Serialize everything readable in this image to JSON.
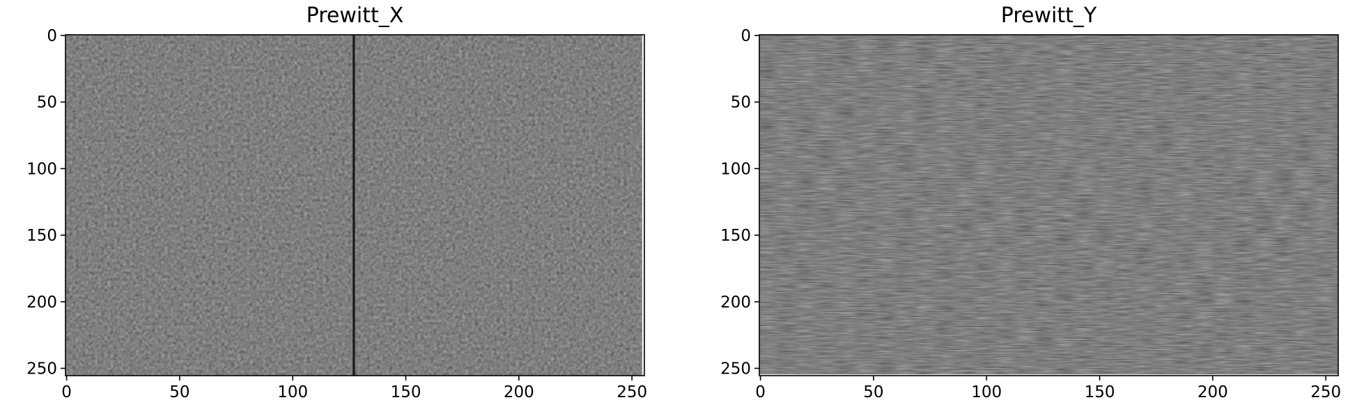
{
  "chart_data": [
    {
      "type": "heatmap",
      "title": "Prewitt_X",
      "colormap": "gray",
      "xlim": [
        0,
        255
      ],
      "ylim": [
        255,
        0
      ],
      "xticks": [
        0,
        50,
        100,
        150,
        200,
        250
      ],
      "yticks": [
        0,
        50,
        100,
        150,
        200,
        250
      ],
      "xtick_labels": [
        "0",
        "50",
        "100",
        "150",
        "200",
        "250"
      ],
      "ytick_labels": [
        "0",
        "50",
        "100",
        "150",
        "200",
        "250"
      ],
      "base_level": "#808080",
      "texture": "fine isotropic noise",
      "features": [
        {
          "kind": "vertical-line",
          "x": 127,
          "color": "#1a1a1a"
        },
        {
          "kind": "vertical-line",
          "x": 255,
          "color": "#f2f2f2"
        }
      ]
    },
    {
      "type": "heatmap",
      "title": "Prewitt_Y",
      "colormap": "gray",
      "xlim": [
        0,
        255
      ],
      "ylim": [
        255,
        0
      ],
      "xticks": [
        0,
        50,
        100,
        150,
        200,
        250
      ],
      "yticks": [
        0,
        50,
        100,
        150,
        200,
        250
      ],
      "xtick_labels": [
        "0",
        "50",
        "100",
        "150",
        "200",
        "250"
      ],
      "ytick_labels": [
        "0",
        "50",
        "100",
        "150",
        "200",
        "250"
      ],
      "base_level": "#808080",
      "texture": "fine horizontal streaks",
      "features": [
        {
          "kind": "horizontal-line",
          "y": 255,
          "color": "#f2f2f2"
        }
      ]
    }
  ]
}
